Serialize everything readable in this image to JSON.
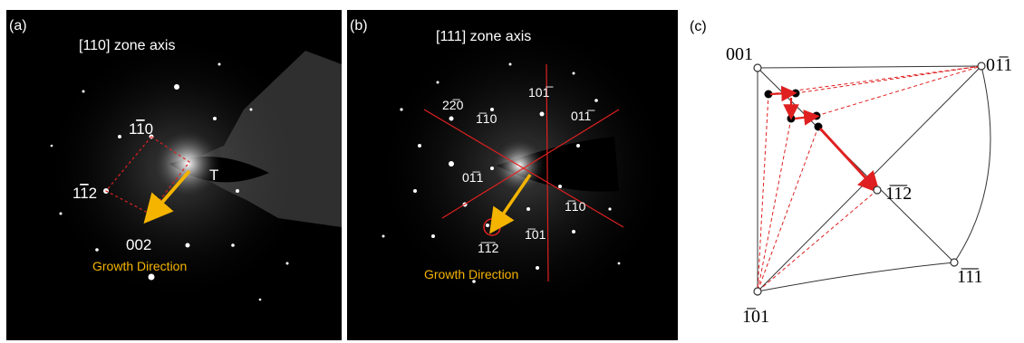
{
  "panel_a": {
    "tag": "(a)",
    "title": "[110] zone axis",
    "spots": [
      "1̅1̅0",
      "1̅1̅2",
      "002",
      "T"
    ],
    "spot_labels": {
      "s110": "1",
      "s110_bar": "1",
      "s110_tail": "0",
      "s112_a": "1",
      "s112_bar": "1",
      "s112_tail": "2",
      "s002": "002",
      "twin": "T"
    },
    "growth": "Growth Direction"
  },
  "panel_b": {
    "tag": "(b)",
    "title": "[111] zone axis",
    "labels": {
      "l220": "22̅0",
      "l110": "1̅10",
      "l101top": "101̅",
      "l011top": "011̅",
      "l011": "01̅1",
      "l110r": "1̅10",
      "l101b": "1̅01",
      "l112": "1̅1̅2"
    },
    "growth": "Growth Direction"
  },
  "panel_c": {
    "tag": "(c)",
    "poles": {
      "p001": "001",
      "p011": "01̅1",
      "p112": "1̅1̅2",
      "p111": "1̅1̅1",
      "p101": "1̅01"
    }
  },
  "colors": {
    "accent_orange": "#f5b400",
    "red": "#e02020",
    "black": "#000000",
    "white": "#ffffff"
  }
}
